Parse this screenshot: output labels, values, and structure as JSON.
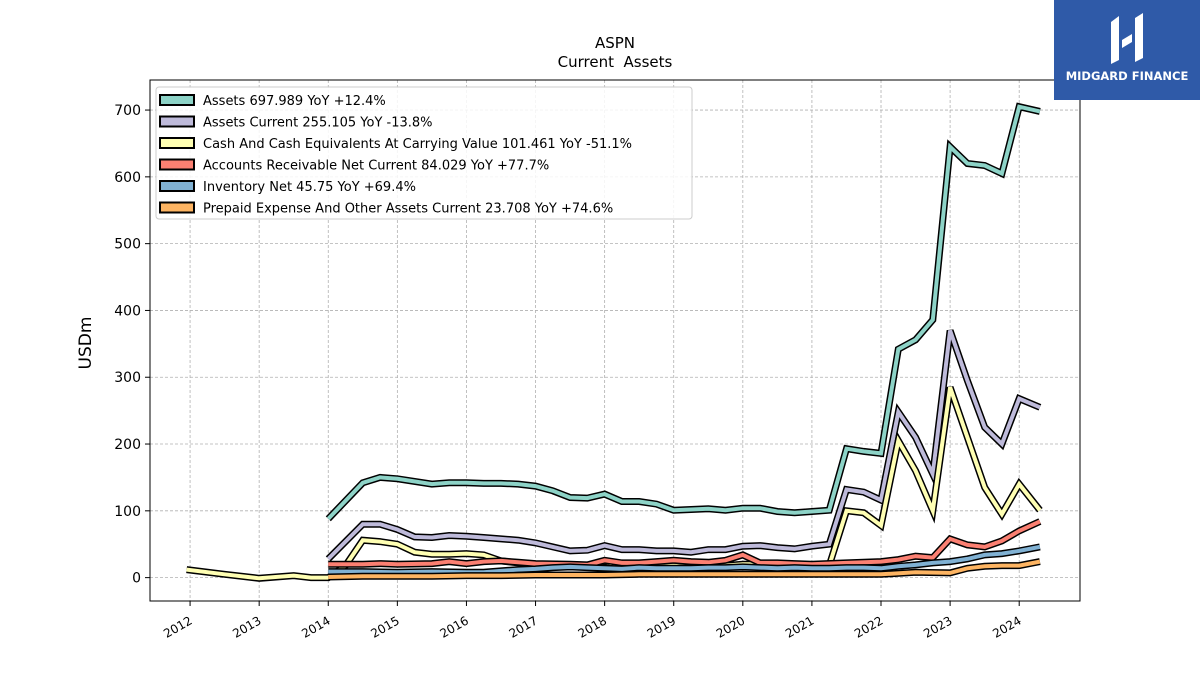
{
  "logo": {
    "text": "MIDGARD FINANCE",
    "background": "#2f5aa8"
  },
  "chart_data": {
    "type": "line",
    "title": "ASPN",
    "subtitle": "Current  Assets",
    "xlabel": "",
    "ylabel": "USDm",
    "x_tick_labels": [
      "2012",
      "2013",
      "2014",
      "2015",
      "2016",
      "2017",
      "2018",
      "2019",
      "2020",
      "2021",
      "2022",
      "2023",
      "2024"
    ],
    "y_ticks": [
      0,
      100,
      200,
      300,
      400,
      500,
      600,
      700
    ],
    "xlim": [
      2011.42,
      2024.88
    ],
    "ylim": [
      -35,
      745
    ],
    "grid": true,
    "legend_position": "top-left",
    "series": [
      {
        "name": "Assets",
        "legend_label": "Assets  697.989 YoY +12.4%",
        "color": "#8dd3c7",
        "points": [
          [
            2014.0,
            88
          ],
          [
            2014.5,
            142
          ],
          [
            2014.75,
            150
          ],
          [
            2015.0,
            148
          ],
          [
            2015.5,
            140
          ],
          [
            2015.75,
            142
          ],
          [
            2016.0,
            142
          ],
          [
            2016.25,
            141
          ],
          [
            2016.5,
            141
          ],
          [
            2016.75,
            140
          ],
          [
            2017.0,
            137
          ],
          [
            2017.25,
            130
          ],
          [
            2017.5,
            120
          ],
          [
            2017.75,
            119
          ],
          [
            2018.0,
            125
          ],
          [
            2018.25,
            114
          ],
          [
            2018.5,
            114
          ],
          [
            2018.75,
            110
          ],
          [
            2019.0,
            101
          ],
          [
            2019.25,
            102
          ],
          [
            2019.5,
            103
          ],
          [
            2019.75,
            101
          ],
          [
            2020.0,
            104
          ],
          [
            2020.25,
            104
          ],
          [
            2020.5,
            99
          ],
          [
            2020.75,
            97
          ],
          [
            2021.0,
            99
          ],
          [
            2021.25,
            101
          ],
          [
            2021.5,
            193
          ],
          [
            2021.75,
            189
          ],
          [
            2022.0,
            186
          ],
          [
            2022.25,
            342
          ],
          [
            2022.5,
            356
          ],
          [
            2022.75,
            386
          ],
          [
            2023.0,
            645
          ],
          [
            2023.25,
            620
          ],
          [
            2023.5,
            617
          ],
          [
            2023.75,
            605
          ],
          [
            2024.0,
            705
          ],
          [
            2024.3,
            698
          ]
        ]
      },
      {
        "name": "Assets Current",
        "legend_label": "Assets Current  255.105 YoY -13.8%",
        "color": "#bebada",
        "points": [
          [
            2014.0,
            28
          ],
          [
            2014.5,
            80
          ],
          [
            2014.75,
            80
          ],
          [
            2015.0,
            72
          ],
          [
            2015.25,
            61
          ],
          [
            2015.5,
            60
          ],
          [
            2015.75,
            63
          ],
          [
            2016.0,
            62
          ],
          [
            2016.25,
            60
          ],
          [
            2016.5,
            58
          ],
          [
            2016.75,
            56
          ],
          [
            2017.0,
            52
          ],
          [
            2017.25,
            46
          ],
          [
            2017.5,
            40
          ],
          [
            2017.75,
            41
          ],
          [
            2018.0,
            48
          ],
          [
            2018.25,
            42
          ],
          [
            2018.5,
            42
          ],
          [
            2018.75,
            40
          ],
          [
            2019.0,
            40
          ],
          [
            2019.25,
            38
          ],
          [
            2019.5,
            42
          ],
          [
            2019.75,
            42
          ],
          [
            2020.0,
            47
          ],
          [
            2020.25,
            48
          ],
          [
            2020.5,
            45
          ],
          [
            2020.75,
            43
          ],
          [
            2021.0,
            47
          ],
          [
            2021.25,
            50
          ],
          [
            2021.5,
            132
          ],
          [
            2021.75,
            128
          ],
          [
            2022.0,
            116
          ],
          [
            2022.25,
            248
          ],
          [
            2022.5,
            210
          ],
          [
            2022.75,
            155
          ],
          [
            2023.0,
            370
          ],
          [
            2023.25,
            295
          ],
          [
            2023.5,
            225
          ],
          [
            2023.75,
            200
          ],
          [
            2024.0,
            268
          ],
          [
            2024.3,
            255
          ]
        ]
      },
      {
        "name": "Cash And Cash Equivalents At Carrying Value",
        "legend_label": "Cash And Cash Equivalents At Carrying Value  101.461 YoY -51.1%",
        "color": "#ffffb3",
        "points": [
          [
            2011.95,
            12
          ],
          [
            2012.5,
            5
          ],
          [
            2013.0,
            -1
          ],
          [
            2013.5,
            3
          ],
          [
            2013.75,
            0
          ],
          [
            2014.0,
            0
          ],
          [
            2014.25,
            18
          ],
          [
            2014.5,
            56
          ],
          [
            2014.75,
            54
          ],
          [
            2015.0,
            50
          ],
          [
            2015.25,
            38
          ],
          [
            2015.5,
            35
          ],
          [
            2015.75,
            35
          ],
          [
            2016.0,
            36
          ],
          [
            2016.25,
            34
          ],
          [
            2016.5,
            25
          ],
          [
            2016.75,
            22
          ],
          [
            2017.0,
            20
          ],
          [
            2017.25,
            18
          ],
          [
            2017.5,
            16
          ],
          [
            2017.75,
            17
          ],
          [
            2018.0,
            24
          ],
          [
            2018.25,
            18
          ],
          [
            2018.5,
            18
          ],
          [
            2018.75,
            17
          ],
          [
            2019.0,
            18
          ],
          [
            2019.25,
            15
          ],
          [
            2019.5,
            18
          ],
          [
            2019.75,
            18
          ],
          [
            2020.0,
            20
          ],
          [
            2020.25,
            20
          ],
          [
            2020.5,
            18
          ],
          [
            2020.75,
            17
          ],
          [
            2021.0,
            16
          ],
          [
            2021.25,
            18
          ],
          [
            2021.5,
            100
          ],
          [
            2021.75,
            97
          ],
          [
            2022.0,
            78
          ],
          [
            2022.25,
            205
          ],
          [
            2022.5,
            160
          ],
          [
            2022.75,
            100
          ],
          [
            2023.0,
            285
          ],
          [
            2023.25,
            210
          ],
          [
            2023.5,
            135
          ],
          [
            2023.75,
            95
          ],
          [
            2024.0,
            140
          ],
          [
            2024.3,
            101
          ]
        ]
      },
      {
        "name": "Accounts Receivable Net Current",
        "legend_label": "Accounts Receivable Net Current  84.029 YoY +77.7%",
        "color": "#fb8072",
        "points": [
          [
            2014.0,
            20
          ],
          [
            2014.5,
            20
          ],
          [
            2014.75,
            21
          ],
          [
            2015.0,
            20
          ],
          [
            2015.5,
            21
          ],
          [
            2015.75,
            24
          ],
          [
            2016.0,
            21
          ],
          [
            2016.25,
            24
          ],
          [
            2016.5,
            25
          ],
          [
            2016.75,
            23
          ],
          [
            2017.0,
            21
          ],
          [
            2017.5,
            20
          ],
          [
            2017.75,
            19
          ],
          [
            2018.0,
            26
          ],
          [
            2018.25,
            22
          ],
          [
            2018.5,
            22
          ],
          [
            2018.75,
            24
          ],
          [
            2019.0,
            26
          ],
          [
            2019.25,
            24
          ],
          [
            2019.5,
            23
          ],
          [
            2019.75,
            26
          ],
          [
            2020.0,
            34
          ],
          [
            2020.25,
            22
          ],
          [
            2020.5,
            22
          ],
          [
            2020.75,
            21
          ],
          [
            2021.0,
            20
          ],
          [
            2021.5,
            22
          ],
          [
            2022.0,
            24
          ],
          [
            2022.25,
            27
          ],
          [
            2022.5,
            32
          ],
          [
            2022.75,
            30
          ],
          [
            2023.0,
            58
          ],
          [
            2023.25,
            49
          ],
          [
            2023.5,
            46
          ],
          [
            2023.75,
            55
          ],
          [
            2024.0,
            70
          ],
          [
            2024.3,
            84
          ]
        ]
      },
      {
        "name": "Inventory Net",
        "legend_label": "Inventory Net  45.75 YoY +69.4%",
        "color": "#80b1d3",
        "points": [
          [
            2014.0,
            9
          ],
          [
            2014.5,
            9
          ],
          [
            2015.0,
            8
          ],
          [
            2015.5,
            9
          ],
          [
            2016.0,
            8
          ],
          [
            2016.25,
            8
          ],
          [
            2016.5,
            10
          ],
          [
            2016.75,
            12
          ],
          [
            2017.0,
            13
          ],
          [
            2017.25,
            15
          ],
          [
            2017.5,
            16
          ],
          [
            2017.75,
            15
          ],
          [
            2018.0,
            14
          ],
          [
            2018.25,
            13
          ],
          [
            2018.5,
            15
          ],
          [
            2018.75,
            14
          ],
          [
            2019.0,
            14
          ],
          [
            2019.25,
            14
          ],
          [
            2019.5,
            15
          ],
          [
            2019.75,
            15
          ],
          [
            2020.0,
            16
          ],
          [
            2020.25,
            15
          ],
          [
            2020.5,
            14
          ],
          [
            2020.75,
            15
          ],
          [
            2021.0,
            14
          ],
          [
            2021.25,
            14
          ],
          [
            2021.5,
            15
          ],
          [
            2021.75,
            15
          ],
          [
            2022.0,
            14
          ],
          [
            2022.25,
            17
          ],
          [
            2022.5,
            19
          ],
          [
            2022.75,
            22
          ],
          [
            2023.0,
            24
          ],
          [
            2023.25,
            28
          ],
          [
            2023.5,
            34
          ],
          [
            2023.75,
            36
          ],
          [
            2024.0,
            40
          ],
          [
            2024.3,
            46
          ]
        ]
      },
      {
        "name": "Prepaid Expense And Other Assets Current",
        "legend_label": "Prepaid Expense And Other Assets Current  23.708 YoY +74.6%",
        "color": "#fdb462",
        "points": [
          [
            2014.0,
            1
          ],
          [
            2014.5,
            2
          ],
          [
            2015.0,
            2
          ],
          [
            2015.5,
            2
          ],
          [
            2016.0,
            3
          ],
          [
            2016.5,
            3
          ],
          [
            2017.0,
            4
          ],
          [
            2017.5,
            4
          ],
          [
            2018.0,
            4
          ],
          [
            2018.5,
            5
          ],
          [
            2019.0,
            5
          ],
          [
            2019.5,
            5
          ],
          [
            2020.0,
            5
          ],
          [
            2020.5,
            5
          ],
          [
            2021.0,
            5
          ],
          [
            2021.5,
            5
          ],
          [
            2022.0,
            5
          ],
          [
            2022.5,
            8
          ],
          [
            2023.0,
            7
          ],
          [
            2023.25,
            14
          ],
          [
            2023.5,
            17
          ],
          [
            2023.75,
            18
          ],
          [
            2024.0,
            18
          ],
          [
            2024.3,
            24
          ]
        ]
      }
    ]
  }
}
